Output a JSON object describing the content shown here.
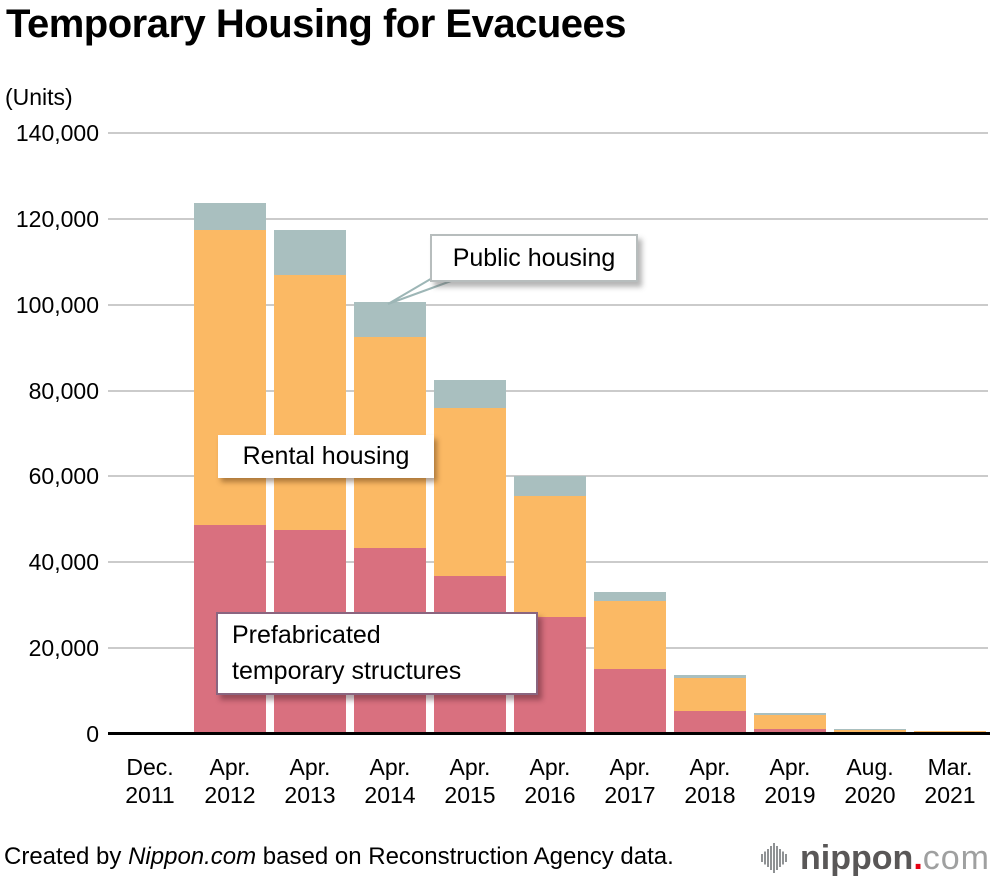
{
  "title": "Temporary Housing for Evacuees",
  "units_label": "(Units)",
  "chart_data": {
    "type": "bar",
    "stacked": true,
    "title": "Temporary Housing for Evacuees",
    "ylabel": "(Units)",
    "ylim": [
      0,
      140000
    ],
    "ytick_step": 20000,
    "ytick_labels": [
      "0",
      "20,000",
      "40,000",
      "60,000",
      "80,000",
      "100,000",
      "120,000",
      "140,000"
    ],
    "grid": true,
    "legend_position": "inline-callouts",
    "categories": [
      {
        "month": "Dec.",
        "year": "2011"
      },
      {
        "month": "Apr.",
        "year": "2012"
      },
      {
        "month": "Apr.",
        "year": "2013"
      },
      {
        "month": "Apr.",
        "year": "2014"
      },
      {
        "month": "Apr.",
        "year": "2015"
      },
      {
        "month": "Apr.",
        "year": "2016"
      },
      {
        "month": "Apr.",
        "year": "2017"
      },
      {
        "month": "Apr.",
        "year": "2018"
      },
      {
        "month": "Apr.",
        "year": "2019"
      },
      {
        "month": "Aug.",
        "year": "2020"
      },
      {
        "month": "Mar.",
        "year": "2021"
      }
    ],
    "series": [
      {
        "name": "Prefabricated temporary structures",
        "color": "#d9707f",
        "values": [
          0,
          48700,
          47600,
          43400,
          36900,
          27200,
          15100,
          5400,
          1100,
          0,
          0
        ]
      },
      {
        "name": "Rental housing",
        "color": "#fbb964",
        "values": [
          0,
          68600,
          59400,
          49000,
          39100,
          28200,
          15800,
          7600,
          3400,
          1000,
          700
        ]
      },
      {
        "name": "Public housing",
        "color": "#a9bfbf",
        "values": [
          0,
          6400,
          10400,
          8300,
          6500,
          4800,
          2100,
          800,
          500,
          100,
          0
        ]
      }
    ]
  },
  "annotations": {
    "public": "Public housing",
    "rental": "Rental housing",
    "prefab_line1": "Prefabricated",
    "prefab_line2": "temporary structures"
  },
  "footer": {
    "credit_prefix": "Created by ",
    "credit_source": "Nippon.com",
    "credit_suffix": " based on Reconstruction Agency data.",
    "logo_word": "nippon",
    "logo_dot": ".",
    "logo_tld": "com"
  },
  "colors": {
    "prefab": "#d9707f",
    "rental": "#fbb964",
    "public": "#a9bfbf",
    "grid": "#cbcbcb",
    "axis": "#000000",
    "callout_border": "#9db6b6",
    "logo_dark": "#595757",
    "logo_light": "#9fa0a0",
    "logo_red": "#e60012",
    "logo_mark": "#8f9294"
  }
}
